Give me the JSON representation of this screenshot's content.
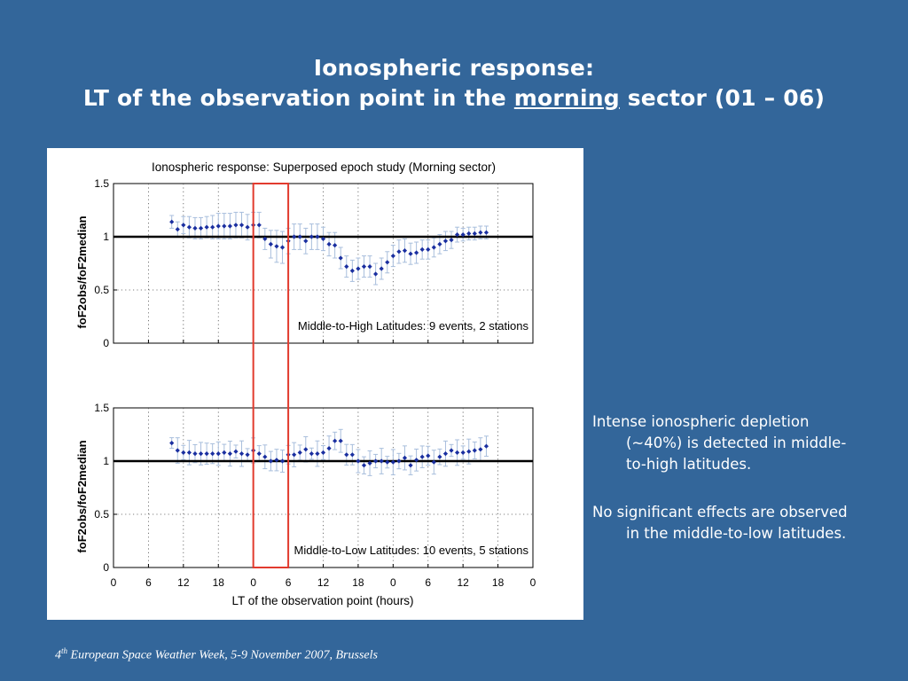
{
  "slide": {
    "title_line1": "Ionospheric response:",
    "title_line2_pre": "LT of the observation point in the",
    "title_line2_emph": "morning",
    "title_line2_post": "sector (01 – 06)",
    "paragraph1": "Intense ionospheric depletion (~40%) is detected in middle-to-high latitudes.",
    "paragraph2": "No significant effects are observed in the middle-to-low latitudes.",
    "footer_num": "4",
    "footer_sup": "th",
    "footer_rest": " European Space Weather Week, 5-9 November 2007, Brussels"
  },
  "chart_data": [
    {
      "type": "scatter",
      "title": "Ionospheric response: Superposed epoch study (Morning sector)",
      "annotation": "Middle-to-High Latitudes: 9 events, 2 stations",
      "ylabel": "foF2obs/foF2median",
      "ylim": [
        0,
        1.5
      ],
      "yticks": [
        0,
        0.5,
        1,
        1.5
      ],
      "ytick_labels": [
        "0",
        "0.5",
        "1",
        "1.5"
      ],
      "grid": true,
      "reference_line": 1,
      "highlight_window_hours": [
        0,
        6
      ],
      "x": [
        -14,
        -13,
        -12,
        -11,
        -10,
        -9,
        -8,
        -7,
        -6,
        -5,
        -4,
        -3,
        -2,
        -1,
        0,
        1,
        2,
        3,
        4,
        5,
        6,
        7,
        8,
        9,
        10,
        11,
        12,
        13,
        14,
        15,
        16,
        17,
        18,
        19,
        20,
        21,
        22,
        23,
        24,
        25,
        26,
        27,
        28,
        29,
        30,
        31,
        32,
        33,
        34,
        35,
        36,
        37,
        38,
        39,
        40
      ],
      "values": [
        1.14,
        1.07,
        1.11,
        1.09,
        1.08,
        1.08,
        1.09,
        1.09,
        1.1,
        1.1,
        1.1,
        1.11,
        1.11,
        1.09,
        1.11,
        1.11,
        0.98,
        0.93,
        0.91,
        0.9,
        0.96,
        1.0,
        1.0,
        0.96,
        1.0,
        1.0,
        0.98,
        0.93,
        0.92,
        0.8,
        0.72,
        0.68,
        0.7,
        0.72,
        0.72,
        0.65,
        0.7,
        0.76,
        0.82,
        0.86,
        0.87,
        0.84,
        0.85,
        0.88,
        0.88,
        0.9,
        0.93,
        0.96,
        0.97,
        1.02,
        1.02,
        1.03,
        1.03,
        1.04,
        1.04
      ],
      "errors": [
        0.06,
        0.07,
        0.08,
        0.1,
        0.1,
        0.1,
        0.1,
        0.11,
        0.12,
        0.12,
        0.12,
        0.12,
        0.12,
        0.12,
        0.12,
        0.12,
        0.1,
        0.13,
        0.15,
        0.15,
        0.12,
        0.12,
        0.12,
        0.12,
        0.12,
        0.12,
        0.11,
        0.11,
        0.12,
        0.1,
        0.1,
        0.1,
        0.1,
        0.1,
        0.1,
        0.1,
        0.1,
        0.1,
        0.1,
        0.11,
        0.11,
        0.1,
        0.1,
        0.09,
        0.09,
        0.09,
        0.09,
        0.09,
        0.08,
        0.07,
        0.06,
        0.06,
        0.06,
        0.06,
        0.06
      ]
    },
    {
      "type": "scatter",
      "annotation": "Middle-to-Low Latitudes: 10 events, 5 stations",
      "ylabel": "foF2obs/foF2median",
      "xlabel": "LT of the observation point (hours)",
      "xlim": [
        -24,
        48
      ],
      "xticks": [
        -24,
        -18,
        -12,
        -6,
        0,
        6,
        12,
        18,
        24,
        30,
        36,
        42,
        48
      ],
      "xtick_labels": [
        "0",
        "6",
        "12",
        "18",
        "0",
        "6",
        "12",
        "18",
        "0",
        "6",
        "12",
        "18",
        "0"
      ],
      "ylim": [
        0,
        1.5
      ],
      "yticks": [
        0,
        0.5,
        1,
        1.5
      ],
      "ytick_labels": [
        "0",
        "0.5",
        "1",
        "1.5"
      ],
      "grid": true,
      "reference_line": 1,
      "highlight_window_hours": [
        0,
        6
      ],
      "x": [
        -14,
        -13,
        -12,
        -11,
        -10,
        -9,
        -8,
        -7,
        -6,
        -5,
        -4,
        -3,
        -2,
        -1,
        0,
        1,
        2,
        3,
        4,
        5,
        6,
        7,
        8,
        9,
        10,
        11,
        12,
        13,
        14,
        15,
        16,
        17,
        18,
        19,
        20,
        21,
        22,
        23,
        24,
        25,
        26,
        27,
        28,
        29,
        30,
        31,
        32,
        33,
        34,
        35,
        36,
        37,
        38,
        39,
        40
      ],
      "values": [
        1.17,
        1.1,
        1.08,
        1.08,
        1.07,
        1.07,
        1.07,
        1.07,
        1.07,
        1.08,
        1.07,
        1.09,
        1.07,
        1.06,
        1.1,
        1.07,
        1.04,
        1.0,
        1.01,
        1.0,
        1.06,
        1.06,
        1.08,
        1.11,
        1.07,
        1.07,
        1.08,
        1.12,
        1.19,
        1.19,
        1.06,
        1.06,
        1.0,
        0.96,
        0.98,
        1.0,
        1.0,
        0.99,
        0.99,
        1.0,
        1.03,
        0.96,
        1.01,
        1.04,
        1.05,
        0.99,
        1.04,
        1.07,
        1.1,
        1.08,
        1.08,
        1.09,
        1.1,
        1.11,
        1.14
      ]
    }
  ]
}
